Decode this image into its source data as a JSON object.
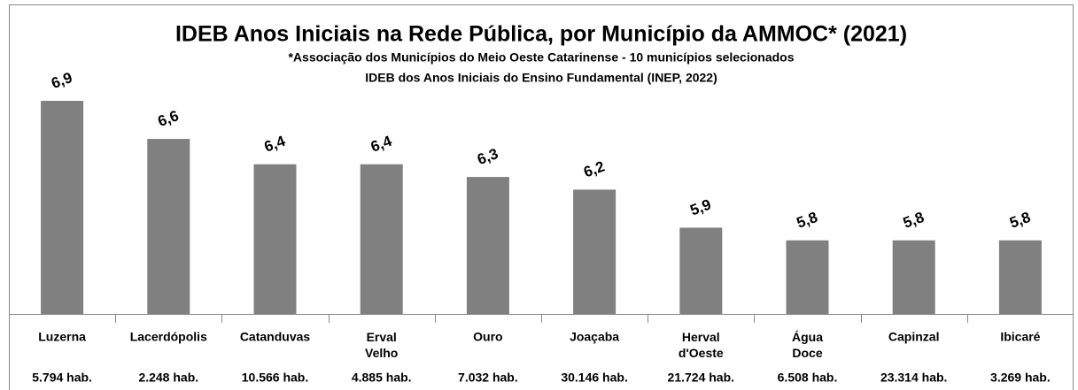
{
  "chart_data": {
    "type": "bar",
    "title": "IDEB Anos Iniciais na Rede Pública, por Município da AMMOC* (2021)",
    "subtitle": [
      "*Associação dos Municípios do Meio Oeste Catarinense - 10 municípios selecionados",
      "IDEB dos Anos Iniciais do Ensino Fundamental (INEP, 2022)"
    ],
    "categories": [
      "Luzerna",
      "Lacerdópolis",
      "Catanduvas",
      "Erval Velho",
      "Ouro",
      "Joaçaba",
      "Herval d'Oeste",
      "Água Doce",
      "Capinzal",
      "Ibicaré"
    ],
    "populations": [
      "5.794 hab.",
      "2.248 hab.",
      "10.566 hab.",
      "4.885 hab.",
      "7.032 hab.",
      "30.146 hab.",
      "21.724 hab.",
      "6.508 hab.",
      "23.314 hab.",
      "3.269 hab."
    ],
    "values": [
      6.9,
      6.6,
      6.4,
      6.4,
      6.3,
      6.2,
      5.9,
      5.8,
      5.8,
      5.8
    ],
    "value_labels": [
      "6,9",
      "6,6",
      "6,4",
      "6,4",
      "6,3",
      "6,2",
      "5,9",
      "5,8",
      "5,8",
      "5,8"
    ],
    "color": "#808080",
    "ylim": [
      5.22,
      7.2
    ]
  }
}
